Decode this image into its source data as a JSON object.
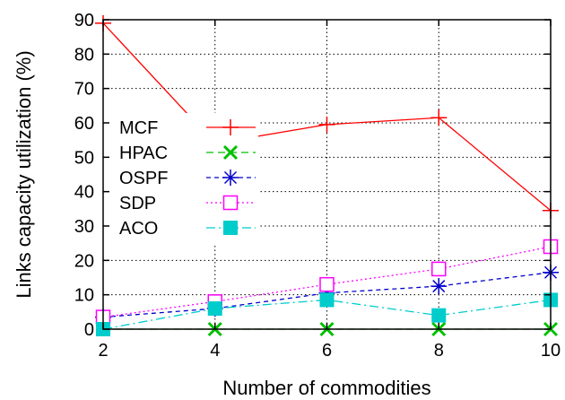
{
  "chart_data": {
    "type": "line",
    "xlabel": "Number of commodities",
    "ylabel": "Links capacity utilization (%)",
    "x": [
      2,
      4,
      6,
      8,
      10
    ],
    "xlim": [
      2,
      10
    ],
    "ylim": [
      0,
      90
    ],
    "xticks": [
      2,
      4,
      6,
      8,
      10
    ],
    "yticks": [
      0,
      10,
      20,
      30,
      40,
      50,
      60,
      70,
      80,
      90
    ],
    "grid": true,
    "legend_position": "left",
    "series": [
      {
        "name": "MCF",
        "values": [
          89,
          54,
          59.5,
          61.5,
          34.5
        ],
        "color": "#ff0000",
        "marker": "plus",
        "dash": ""
      },
      {
        "name": "HPAC",
        "values": [
          0,
          0,
          0,
          0,
          0
        ],
        "color": "#00c000",
        "marker": "x",
        "dash": "8 5"
      },
      {
        "name": "OSPF",
        "values": [
          3.5,
          6,
          10.5,
          12.5,
          16.5
        ],
        "color": "#0000cc",
        "marker": "star",
        "dash": "5 4"
      },
      {
        "name": "SDP",
        "values": [
          3.5,
          8,
          13,
          17.5,
          24
        ],
        "color": "#ff00ff",
        "marker": "square-open",
        "dash": "2 3"
      },
      {
        "name": "ACO",
        "values": [
          0,
          6,
          8.5,
          4,
          8.5
        ],
        "color": "#00cccc",
        "marker": "square-filled",
        "dash": "10 4 2 4"
      }
    ]
  }
}
